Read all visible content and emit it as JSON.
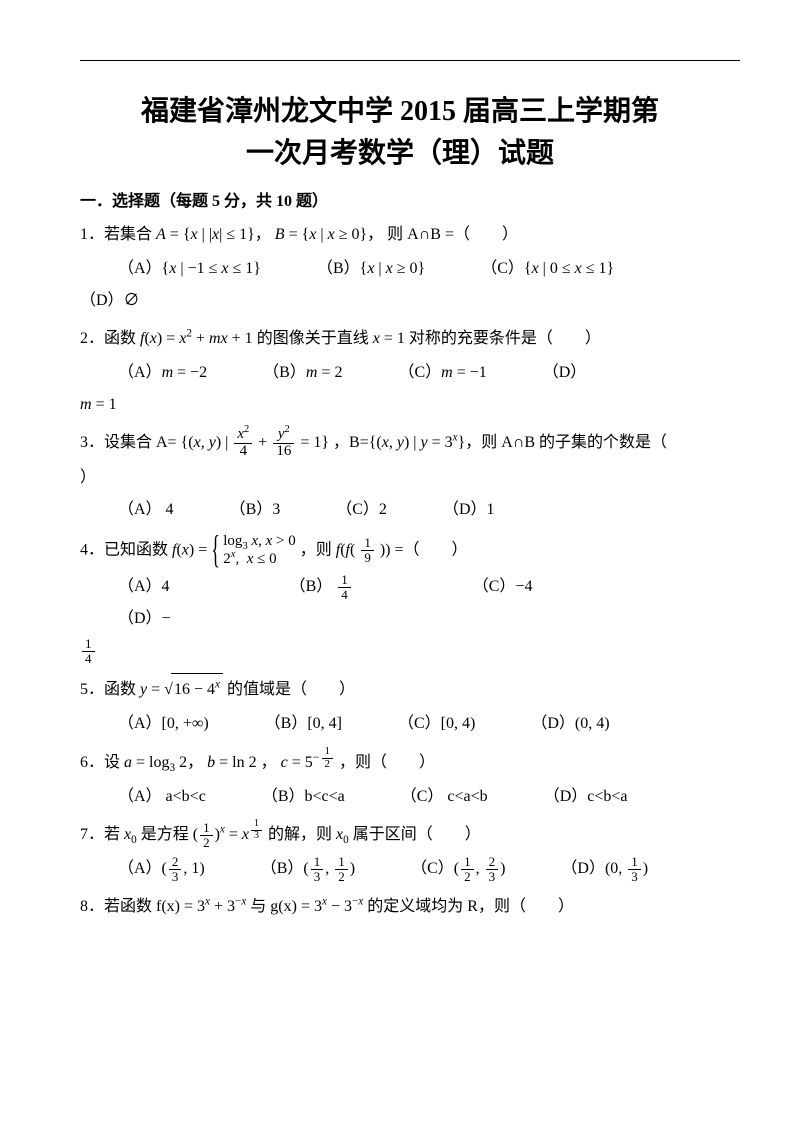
{
  "title_line1": "福建省漳州龙文中学 2015 届高三上学期第",
  "title_line2": "一次月考数学（理）试题",
  "section1": "一．选择题（每题 5 分，共 10 题）",
  "q1": {
    "stem_pre": "1．若集合 ",
    "A": "A = {x | |x| ≤ 1}，",
    "B": "B = {x | x ≥ 0}，",
    "tail": "则 A∩B =（　　）",
    "optA": "（A）{x | −1 ≤ x ≤ 1}",
    "optB": "（B）{x | x ≥ 0}",
    "optC": "（C）{x | 0 ≤ x ≤ 1}",
    "optD": "（D）∅"
  },
  "q2": {
    "stem_pre": "2．函数 ",
    "fx": "f(x) = x² + mx + 1",
    "mid": " 的图像关于直线 ",
    "axis": "x = 1",
    "tail": " 对称的充要条件是（　　）",
    "optA": "（A）m = −2",
    "optB": "（B）m = 2",
    "optC": "（C）m = −1",
    "optD_pre": "（D）",
    "optD": "m = 1"
  },
  "q3": {
    "stem_pre": "3．设集合 A=",
    "setA_open": "{(x, y) |",
    "fracx_num": "x²",
    "fracx_den": "4",
    "fracy_num": "y²",
    "fracy_den": "16",
    "setA_close": " = 1}",
    "mid": "，B={(x, y) | y = 3ˣ}，则 A∩B 的子集的个数是（",
    "tail": "）",
    "optA": "（A） 4",
    "optB": "（B）3",
    "optC": "（C）2",
    "optD": "（D）1"
  },
  "q4": {
    "stem_pre": "4．已知函数 ",
    "fx": "f(x) = ",
    "case1": "log₃ x, x > 0",
    "case2": "2ˣ,  x ≤ 0",
    "mid": "，则 ",
    "ffval_pre": "f(f(",
    "ffval_num": "1",
    "ffval_den": "9",
    "ffval_post": ")) =（　　）",
    "optA": "（A）4",
    "optB_pre": "（B）",
    "optB_num": "1",
    "optB_den": "4",
    "optC": "（C）−4",
    "optD_pre": "（D）−",
    "optD_num": "1",
    "optD_den": "4"
  },
  "q5": {
    "stem_pre": "5．函数 ",
    "y_pre": "y = ",
    "rad": "16 − 4ˣ",
    "tail": " 的值域是（　　）",
    "optA": "（A）[0, +∞)",
    "optB": "（B）[0, 4]",
    "optC": "（C）[0, 4)",
    "optD": "（D）(0, 4)"
  },
  "q6": {
    "stem_pre": "6．设 ",
    "a": "a = log₃ 2",
    "b": "b = ln 2",
    "c_pre": "c = 5",
    "c_exp_num": "1",
    "c_exp_den": "2",
    "tail": "，则（　　）",
    "optA": "（A） a<b<c",
    "optB": "（B）b<c<a",
    "optC": "（C） c<a<b",
    "optD": "（D）c<b<a"
  },
  "q7": {
    "stem_pre": "7．若 ",
    "x0": "x₀",
    "mid1": " 是方程 ",
    "lhs_num": "1",
    "lhs_den": "2",
    "exp_x": "x",
    "rhs_base": "x",
    "rhs_num": "1",
    "rhs_den": "3",
    "mid2": " 的解，则 ",
    "tail": " 属于区间（　　）",
    "optA_pre": "（A）(",
    "optA_n1": "2",
    "optA_d1": "3",
    "optA_post": ", 1)",
    "optB_pre": "（B）(",
    "optB_n1": "1",
    "optB_d1": "3",
    "optB_mid": ", ",
    "optB_n2": "1",
    "optB_d2": "2",
    "optB_post": ")",
    "optC_pre": "（C）(",
    "optC_n1": "1",
    "optC_d1": "2",
    "optC_mid": ", ",
    "optC_n2": "2",
    "optC_d2": "3",
    "optC_post": ")",
    "optD_pre": "（D）(0, ",
    "optD_n1": "1",
    "optD_d1": "3",
    "optD_post": ")"
  },
  "q8": {
    "stem": "8．若函数 f(x) = 3ˣ + 3⁻ˣ 与 g(x) = 3ˣ − 3⁻ˣ 的定义域均为 R，则（　　）"
  }
}
